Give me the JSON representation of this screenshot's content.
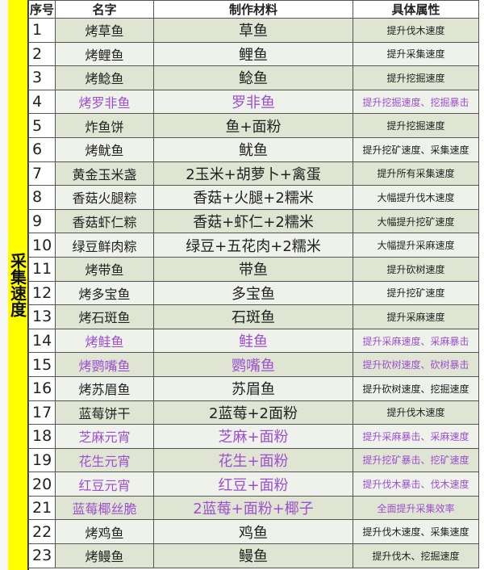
{
  "category_label": "采集速度",
  "accent_color": "#9b4fd1",
  "headers": {
    "seq": "序号",
    "name": "名字",
    "material": "制作材料",
    "attribute": "具体属性"
  },
  "rows": [
    {
      "seq": "1",
      "name": "烤草鱼",
      "material": "草鱼",
      "attribute": "提升伐木速度",
      "highlight": false
    },
    {
      "seq": "2",
      "name": "烤鲤鱼",
      "material": "鲤鱼",
      "attribute": "提升采集速度",
      "highlight": false
    },
    {
      "seq": "3",
      "name": "烤鲶鱼",
      "material": "鲶鱼",
      "attribute": "提升挖掘速度",
      "highlight": false
    },
    {
      "seq": "4",
      "name": "烤罗非鱼",
      "material": "罗非鱼",
      "attribute": "提升挖掘速度、挖掘暴击",
      "highlight": true
    },
    {
      "seq": "5",
      "name": "炸鱼饼",
      "material": "鱼+面粉",
      "attribute": "提升挖掘速度",
      "highlight": false
    },
    {
      "seq": "6",
      "name": "烤鱿鱼",
      "material": "鱿鱼",
      "attribute": "提升挖矿速度、采集速度",
      "highlight": false
    },
    {
      "seq": "7",
      "name": "黄金玉米盏",
      "material": "2玉米+胡萝卜+禽蛋",
      "attribute": "提升所有采集速度",
      "highlight": false
    },
    {
      "seq": "8",
      "name": "香菇火腿粽",
      "material": "香菇+火腿+2糯米",
      "attribute": "大幅提升伐木速度",
      "highlight": false
    },
    {
      "seq": "9",
      "name": "香菇虾仁粽",
      "material": "香菇+虾仁+2糯米",
      "attribute": "大幅提升挖矿速度",
      "highlight": false
    },
    {
      "seq": "10",
      "name": "绿豆鲜肉粽",
      "material": "绿豆+五花肉+2糯米",
      "attribute": "大幅提升采麻速度",
      "highlight": false
    },
    {
      "seq": "11",
      "name": "烤带鱼",
      "material": "带鱼",
      "attribute": "提升砍树速度",
      "highlight": false
    },
    {
      "seq": "12",
      "name": "烤多宝鱼",
      "material": "多宝鱼",
      "attribute": "提升挖矿速度",
      "highlight": false
    },
    {
      "seq": "13",
      "name": "烤石斑鱼",
      "material": "石斑鱼",
      "attribute": "提升采麻速度",
      "highlight": false
    },
    {
      "seq": "14",
      "name": "烤鲑鱼",
      "material": "鲑鱼",
      "attribute": "提升采麻速度、采麻暴击",
      "highlight": true
    },
    {
      "seq": "15",
      "name": "烤鹦嘴鱼",
      "material": "鹦嘴鱼",
      "attribute": "提升砍树速度、砍树暴击",
      "highlight": true
    },
    {
      "seq": "16",
      "name": "烤苏眉鱼",
      "material": "苏眉鱼",
      "attribute": "提升砍树速度、挖掘速度",
      "highlight": false
    },
    {
      "seq": "17",
      "name": "蓝莓饼干",
      "material": "2蓝莓+2面粉",
      "attribute": "提升伐木速度",
      "highlight": false
    },
    {
      "seq": "18",
      "name": "芝麻元宵",
      "material": "芝麻+面粉",
      "attribute": "提升采麻暴击、采麻速度",
      "highlight": true
    },
    {
      "seq": "19",
      "name": "花生元宵",
      "material": "花生+面粉",
      "attribute": "提升挖矿暴击、挖矿速度",
      "highlight": true
    },
    {
      "seq": "20",
      "name": "红豆元宵",
      "material": "红豆+面粉",
      "attribute": "提升伐木暴击、伐木速度",
      "highlight": true
    },
    {
      "seq": "21",
      "name": "蓝莓椰丝脆",
      "material": "2蓝莓+面粉+椰子",
      "attribute": "全面提升采集效率",
      "highlight": true
    },
    {
      "seq": "22",
      "name": "烤鸡鱼",
      "material": "鸡鱼",
      "attribute": "提升伐木速度、采集速度",
      "highlight": false
    },
    {
      "seq": "23",
      "name": "烤鳗鱼",
      "material": "鳗鱼",
      "attribute": "提升伐木、挖掘速度",
      "highlight": false
    }
  ]
}
